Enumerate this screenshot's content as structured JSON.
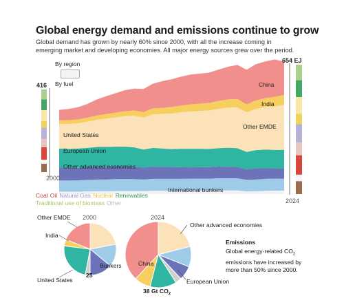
{
  "header": {
    "title": "Global energy demand and emissions continue to grow",
    "subtitle": "Global demand has grown by nearly 60% since 2000, with all the increase coming in emerging market and developing economies. All major energy sources grew over the period."
  },
  "toggle": {
    "region_label": "By region",
    "fuel_label": "By fuel"
  },
  "legend": [
    {
      "label": "Coal",
      "color": "#c0392b"
    },
    {
      "label": "Oil",
      "color": "#d4453a"
    },
    {
      "label": "Natural Gas",
      "color": "#9b92c9"
    },
    {
      "label": "Nuclear",
      "color": "#e8c33a"
    },
    {
      "label": "Renewables",
      "color": "#2e9a55"
    },
    {
      "label": "Traditional use of biomass",
      "color": "#a5c85a"
    },
    {
      "label": "Other",
      "color": "#b9b9b9"
    }
  ],
  "fuel_bar_colors": [
    "#9a6b4f",
    "#f5f5f5",
    "#d9463b",
    "#e8c5c0",
    "#b8b2d8",
    "#f1d35c",
    "#f7e8a8",
    "#43a864",
    "#a9d08c"
  ],
  "chart_data": [
    {
      "type": "area",
      "stacked": true,
      "x_start_label": "2000",
      "x_end_label": "2024",
      "x": [
        2000,
        2001,
        2002,
        2003,
        2004,
        2005,
        2006,
        2007,
        2008,
        2009,
        2010,
        2011,
        2012,
        2013,
        2014,
        2015,
        2016,
        2017,
        2018,
        2019,
        2020,
        2021,
        2022,
        2023,
        2024
      ],
      "unit": "EJ",
      "total_start_label": "416",
      "total_end_label": "654 EJ",
      "ylim": [
        0,
        690
      ],
      "series": [
        {
          "name": "International bunkers",
          "color": "#f2f2f2",
          "values": [
            12,
            12,
            12,
            13,
            14,
            14,
            15,
            15,
            15,
            15,
            16,
            16,
            16,
            16,
            17,
            17,
            17,
            18,
            18,
            18,
            13,
            14,
            16,
            17,
            17
          ]
        },
        {
          "name": "Other advanced economies",
          "color": "#9dcbe8",
          "values": [
            55,
            55,
            56,
            57,
            58,
            58,
            59,
            59,
            59,
            57,
            59,
            59,
            59,
            59,
            59,
            59,
            59,
            60,
            60,
            60,
            57,
            58,
            59,
            59,
            59
          ]
        },
        {
          "name": "European Union",
          "color": "#6c73b8",
          "values": [
            62,
            62,
            62,
            63,
            64,
            64,
            64,
            63,
            63,
            59,
            61,
            59,
            59,
            58,
            56,
            57,
            57,
            58,
            57,
            56,
            52,
            55,
            53,
            51,
            51
          ]
        },
        {
          "name": "United States",
          "color": "#2fb5a2",
          "values": [
            96,
            94,
            95,
            95,
            97,
            97,
            96,
            97,
            94,
            89,
            92,
            91,
            88,
            91,
            92,
            91,
            90,
            91,
            94,
            93,
            86,
            90,
            92,
            91,
            92
          ]
        },
        {
          "name": "Other EMDE",
          "color": "#fbe2b8",
          "values": [
            121,
            123,
            125,
            129,
            134,
            140,
            145,
            151,
            156,
            158,
            166,
            171,
            176,
            180,
            184,
            187,
            190,
            194,
            198,
            201,
            196,
            204,
            209,
            215,
            222
          ]
        },
        {
          "name": "India",
          "color": "#f6cf5e",
          "values": [
            18,
            19,
            19,
            20,
            21,
            22,
            23,
            24,
            26,
            27,
            29,
            30,
            32,
            33,
            35,
            36,
            37,
            39,
            41,
            42,
            39,
            42,
            45,
            47,
            49
          ]
        },
        {
          "name": "China",
          "color": "#f08f8b",
          "values": [
            52,
            55,
            60,
            68,
            79,
            88,
            96,
            104,
            108,
            114,
            122,
            132,
            137,
            143,
            147,
            148,
            150,
            155,
            161,
            168,
            171,
            179,
            181,
            185,
            164
          ]
        }
      ]
    },
    {
      "type": "pie",
      "year_label": "2000",
      "total_label": "25",
      "labels": [
        "Other EMDE",
        "Other advanced economies",
        "European Union",
        "Bunkers",
        "United States",
        "India",
        "China"
      ],
      "values": [
        22,
        14,
        14,
        3,
        24,
        4,
        19
      ],
      "colors": [
        "#fbe2b8",
        "#9dcbe8",
        "#6c73b8",
        "#cfcfcf",
        "#2fb5a2",
        "#f6cf5e",
        "#f08f8b"
      ]
    },
    {
      "type": "pie",
      "year_label": "2024",
      "total_label": "38 Gt CO",
      "total_label_sub": "2",
      "labels": [
        "Other EMDE",
        "Other advanced economies",
        "European Union",
        "Bunkers",
        "United States",
        "India",
        "China"
      ],
      "values": [
        21,
        10,
        7,
        3,
        13,
        8,
        38
      ],
      "colors": [
        "#fbe2b8",
        "#9dcbe8",
        "#6c73b8",
        "#cfcfcf",
        "#2fb5a2",
        "#f6cf5e",
        "#f08f8b"
      ]
    }
  ],
  "pie_labels": {
    "other_emde": "Other EMDE",
    "india": "India",
    "united_states": "United States",
    "bunkers": "Bunkers",
    "other_advanced": "Other advanced economies",
    "china": "China",
    "european_union": "European Union"
  },
  "emissions": {
    "heading": "Emissions",
    "line1_a": "Global energy-related CO",
    "line1_sub": "2",
    "line2": "emissions have increased by",
    "line3": "more than 50% since 2000."
  }
}
